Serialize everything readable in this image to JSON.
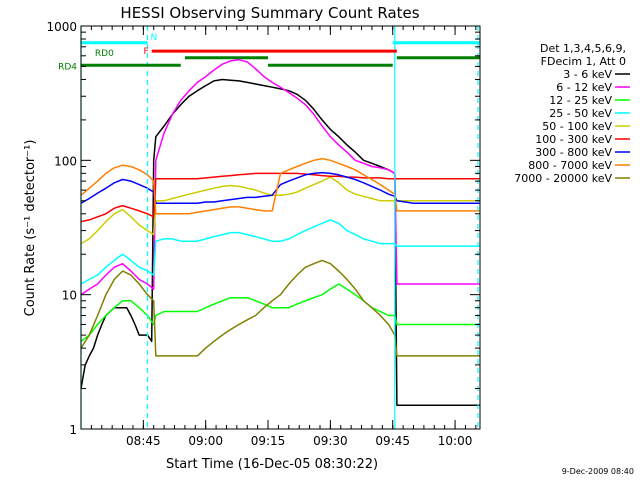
{
  "chart_data": {
    "type": "line",
    "title": "HESSI Observing Summary Count Rates",
    "xlabel": "Start Time (16-Dec-05 08:30:22)",
    "ylabel": "Count Rate (s⁻¹ detector⁻¹)",
    "yscale": "log",
    "ylim": [
      1,
      1000
    ],
    "xlim_minutes_after_start": [
      0,
      96
    ],
    "x_tick_labels": [
      "08:45",
      "09:00",
      "09:15",
      "09:30",
      "09:45",
      "10:00"
    ],
    "x_tick_minutes": [
      15,
      30,
      45,
      60,
      75,
      90
    ],
    "y_tick_labels": [
      "1",
      "10",
      "100",
      "1000"
    ],
    "y_ticks": [
      1,
      10,
      100,
      1000
    ],
    "legend_position": "right",
    "legend_header": [
      "Det 1,3,4,5,6,9,",
      "FDecim 1, Att 0"
    ],
    "timestamp": "9-Dec-2009 08:40",
    "series": [
      {
        "name": "3 - 6 keV",
        "color": "#000000",
        "x": [
          0,
          1,
          2,
          3,
          4,
          5,
          6,
          7,
          8,
          9,
          10,
          11,
          12,
          13,
          14,
          15,
          16,
          17,
          17.5,
          18,
          20,
          22,
          24,
          26,
          28,
          30,
          32,
          34,
          36,
          38,
          40,
          42,
          44,
          46,
          48,
          50,
          52,
          54,
          56,
          58,
          60,
          62,
          64,
          66,
          68,
          70,
          72,
          74,
          75.5,
          76,
          78,
          80,
          82,
          84,
          86,
          88,
          90,
          92,
          94,
          96
        ],
        "y": [
          2,
          3,
          3.5,
          4,
          5,
          6,
          7,
          7.5,
          8,
          8,
          8,
          8,
          7,
          6,
          5,
          5,
          5,
          4.5,
          100,
          150,
          180,
          220,
          260,
          300,
          330,
          360,
          390,
          400,
          395,
          390,
          380,
          370,
          360,
          350,
          340,
          330,
          310,
          280,
          240,
          200,
          170,
          150,
          130,
          115,
          100,
          95,
          90,
          85,
          80,
          1.5,
          1.5,
          1.5,
          1.5,
          1.5,
          1.5,
          1.5,
          1.5,
          1.5,
          1.5,
          1.5
        ]
      },
      {
        "name": "6 - 12 keV",
        "color": "#ff00ff",
        "x": [
          0,
          2,
          4,
          6,
          8,
          10,
          12,
          14,
          16,
          17.5,
          18,
          20,
          22,
          24,
          26,
          28,
          30,
          32,
          34,
          36,
          38,
          40,
          42,
          44,
          46,
          48,
          50,
          52,
          54,
          56,
          58,
          60,
          62,
          64,
          66,
          68,
          70,
          72,
          74,
          75.5,
          76,
          80,
          84,
          88,
          92,
          96
        ],
        "y": [
          10,
          11,
          12,
          14,
          16,
          17,
          15,
          13,
          12,
          11,
          100,
          160,
          220,
          280,
          330,
          380,
          420,
          470,
          520,
          550,
          560,
          540,
          480,
          420,
          380,
          350,
          320,
          290,
          260,
          220,
          180,
          150,
          130,
          115,
          100,
          95,
          90,
          88,
          85,
          80,
          12,
          12,
          12,
          12,
          12,
          12
        ]
      },
      {
        "name": "12 - 25 keV",
        "color": "#00ff00",
        "x": [
          0,
          2,
          4,
          6,
          8,
          10,
          12,
          14,
          16,
          17.5,
          18,
          20,
          22,
          24,
          26,
          28,
          30,
          32,
          34,
          36,
          38,
          40,
          42,
          44,
          46,
          48,
          50,
          52,
          54,
          56,
          58,
          60,
          62,
          64,
          66,
          68,
          70,
          72,
          74,
          75.5,
          76,
          80,
          84,
          88,
          92,
          96
        ],
        "y": [
          4.5,
          5,
          6,
          7,
          8,
          9,
          9,
          8,
          7,
          6,
          7,
          7.5,
          7.5,
          7.5,
          7.5,
          7.5,
          8,
          8.5,
          9,
          9.5,
          9.5,
          9.5,
          9,
          8.5,
          8,
          8,
          8,
          8.5,
          9,
          9.5,
          10,
          11,
          12,
          11,
          10,
          9,
          8,
          7.5,
          7,
          7,
          6,
          6,
          6,
          6,
          6,
          6
        ]
      },
      {
        "name": "25 - 50 keV",
        "color": "#00ffff",
        "x": [
          0,
          2,
          4,
          6,
          8,
          10,
          12,
          14,
          16,
          17.5,
          18,
          20,
          22,
          24,
          26,
          28,
          30,
          32,
          34,
          36,
          38,
          40,
          42,
          44,
          46,
          48,
          50,
          52,
          54,
          56,
          58,
          60,
          62,
          64,
          66,
          68,
          70,
          72,
          74,
          75.5,
          76,
          80,
          84,
          88,
          92,
          96
        ],
        "y": [
          12,
          13,
          14,
          16,
          18,
          20,
          18,
          16,
          15,
          14,
          25,
          26,
          26,
          25,
          25,
          25,
          26,
          27,
          28,
          29,
          29,
          28,
          27,
          26,
          25,
          25,
          26,
          28,
          30,
          32,
          34,
          36,
          34,
          30,
          28,
          26,
          25,
          24,
          24,
          24,
          23,
          23,
          23,
          23,
          23,
          23
        ]
      },
      {
        "name": "50 - 100 keV",
        "color": "#cccc00",
        "x": [
          0,
          2,
          4,
          6,
          8,
          10,
          12,
          14,
          16,
          17.5,
          18,
          20,
          22,
          24,
          26,
          28,
          30,
          32,
          34,
          36,
          38,
          40,
          42,
          44,
          46,
          48,
          50,
          52,
          54,
          56,
          58,
          60,
          62,
          64,
          66,
          68,
          70,
          72,
          74,
          75.5,
          76,
          80,
          84,
          88,
          92,
          96
        ],
        "y": [
          24,
          26,
          30,
          35,
          40,
          43,
          38,
          33,
          30,
          28,
          50,
          50,
          52,
          54,
          56,
          58,
          60,
          62,
          64,
          65,
          64,
          62,
          60,
          57,
          55,
          55,
          56,
          58,
          62,
          66,
          70,
          75,
          68,
          60,
          56,
          54,
          52,
          50,
          50,
          50,
          50,
          50,
          50,
          50,
          50,
          50
        ]
      },
      {
        "name": "100 - 300 keV",
        "color": "#ff0000",
        "x": [
          0,
          2,
          4,
          6,
          8,
          10,
          12,
          14,
          16,
          17.5,
          18,
          20,
          22,
          24,
          26,
          28,
          30,
          32,
          34,
          36,
          38,
          40,
          42,
          44,
          46,
          48,
          50,
          52,
          54,
          56,
          58,
          60,
          62,
          64,
          66,
          68,
          70,
          72,
          74,
          75.5,
          76,
          80,
          84,
          88,
          92,
          96
        ],
        "y": [
          35,
          36,
          38,
          40,
          44,
          46,
          44,
          42,
          40,
          38,
          73,
          73,
          73,
          73,
          73,
          73,
          74,
          75,
          76,
          77,
          78,
          79,
          80,
          80,
          80,
          80,
          80,
          80,
          79,
          78,
          77,
          76,
          76,
          75,
          75,
          74,
          74,
          74,
          73,
          73,
          73,
          73,
          73,
          73,
          73,
          73
        ]
      },
      {
        "name": "300 - 800 keV",
        "color": "#0000ff",
        "x": [
          0,
          2,
          4,
          6,
          8,
          10,
          12,
          14,
          16,
          17.5,
          18,
          20,
          22,
          24,
          26,
          28,
          30,
          32,
          34,
          36,
          38,
          40,
          42,
          44,
          46,
          48,
          50,
          52,
          54,
          56,
          58,
          60,
          62,
          64,
          66,
          68,
          70,
          72,
          74,
          75.5,
          76,
          80,
          84,
          88,
          92,
          96
        ],
        "y": [
          48,
          52,
          57,
          62,
          68,
          72,
          70,
          66,
          62,
          58,
          48,
          48,
          48,
          48,
          48,
          48,
          49,
          49,
          50,
          51,
          52,
          53,
          53,
          54,
          55,
          66,
          70,
          74,
          78,
          80,
          81,
          80,
          78,
          75,
          72,
          68,
          64,
          60,
          56,
          54,
          50,
          48,
          48,
          48,
          48,
          48
        ]
      },
      {
        "name": "800 - 7000 keV",
        "color": "#ff8000",
        "x": [
          0,
          2,
          4,
          6,
          8,
          10,
          12,
          14,
          16,
          17.5,
          18,
          20,
          22,
          24,
          26,
          28,
          30,
          32,
          34,
          36,
          38,
          40,
          42,
          44,
          46,
          48,
          50,
          52,
          54,
          56,
          58,
          60,
          62,
          64,
          66,
          68,
          70,
          72,
          74,
          75.5,
          76,
          80,
          84,
          88,
          92,
          96
        ],
        "y": [
          55,
          62,
          70,
          80,
          88,
          92,
          90,
          85,
          78,
          70,
          40,
          40,
          40,
          40,
          40,
          41,
          42,
          43,
          44,
          45,
          45,
          44,
          43,
          42,
          42,
          80,
          85,
          90,
          95,
          100,
          103,
          100,
          95,
          90,
          85,
          78,
          72,
          66,
          60,
          56,
          42,
          42,
          42,
          42,
          42,
          42
        ]
      },
      {
        "name": "7000 - 20000 keV",
        "color": "#808000",
        "x": [
          0,
          2,
          4,
          6,
          8,
          10,
          12,
          14,
          16,
          17.5,
          18,
          20,
          22,
          24,
          26,
          28,
          30,
          32,
          34,
          36,
          38,
          40,
          42,
          44,
          46,
          48,
          50,
          52,
          54,
          56,
          58,
          60,
          62,
          64,
          66,
          68,
          70,
          72,
          74,
          75.5,
          76,
          80,
          84,
          88,
          92,
          96
        ],
        "y": [
          4,
          5,
          7,
          10,
          13,
          15,
          14,
          12,
          10,
          9,
          3.5,
          3.5,
          3.5,
          3.5,
          3.5,
          3.5,
          4,
          4.5,
          5,
          5.5,
          6,
          6.5,
          7,
          8,
          9,
          10,
          12,
          14,
          16,
          17,
          18,
          17,
          15,
          13,
          11,
          9,
          8,
          7,
          6,
          5,
          3.5,
          3.5,
          3.5,
          3.5,
          3.5,
          3.5
        ]
      }
    ],
    "annotations": [
      {
        "label": "N",
        "color": "#00ffff",
        "x_start": 0,
        "x_end": 16,
        "y": 750
      },
      {
        "label": "",
        "color": "#00ffff",
        "x_start": 75,
        "x_end": 96,
        "y": 750
      },
      {
        "label": "F",
        "color": "#ff0000",
        "x_start": 17,
        "x_end": 76,
        "y": 650
      },
      {
        "label": "RD0",
        "color": "#008000",
        "x_start": 25,
        "x_end": 45,
        "y": 580
      },
      {
        "label": "",
        "color": "#008000",
        "x_start": 76,
        "x_end": 96,
        "y": 580
      },
      {
        "label": "RD4",
        "color": "#008000",
        "x_start": 0,
        "x_end": 24,
        "y": 510
      },
      {
        "label": "",
        "color": "#008000",
        "x_start": 45,
        "x_end": 75,
        "y": 510
      }
    ],
    "vertical_markers": [
      {
        "x": 0,
        "color": "#00ffff",
        "style": "solid"
      },
      {
        "x": 16,
        "color": "#00ffff",
        "style": "dashed"
      },
      {
        "x": 75.5,
        "color": "#00ffff",
        "style": "solid"
      },
      {
        "x": 95.5,
        "color": "#00ffff",
        "style": "dashed"
      }
    ]
  }
}
